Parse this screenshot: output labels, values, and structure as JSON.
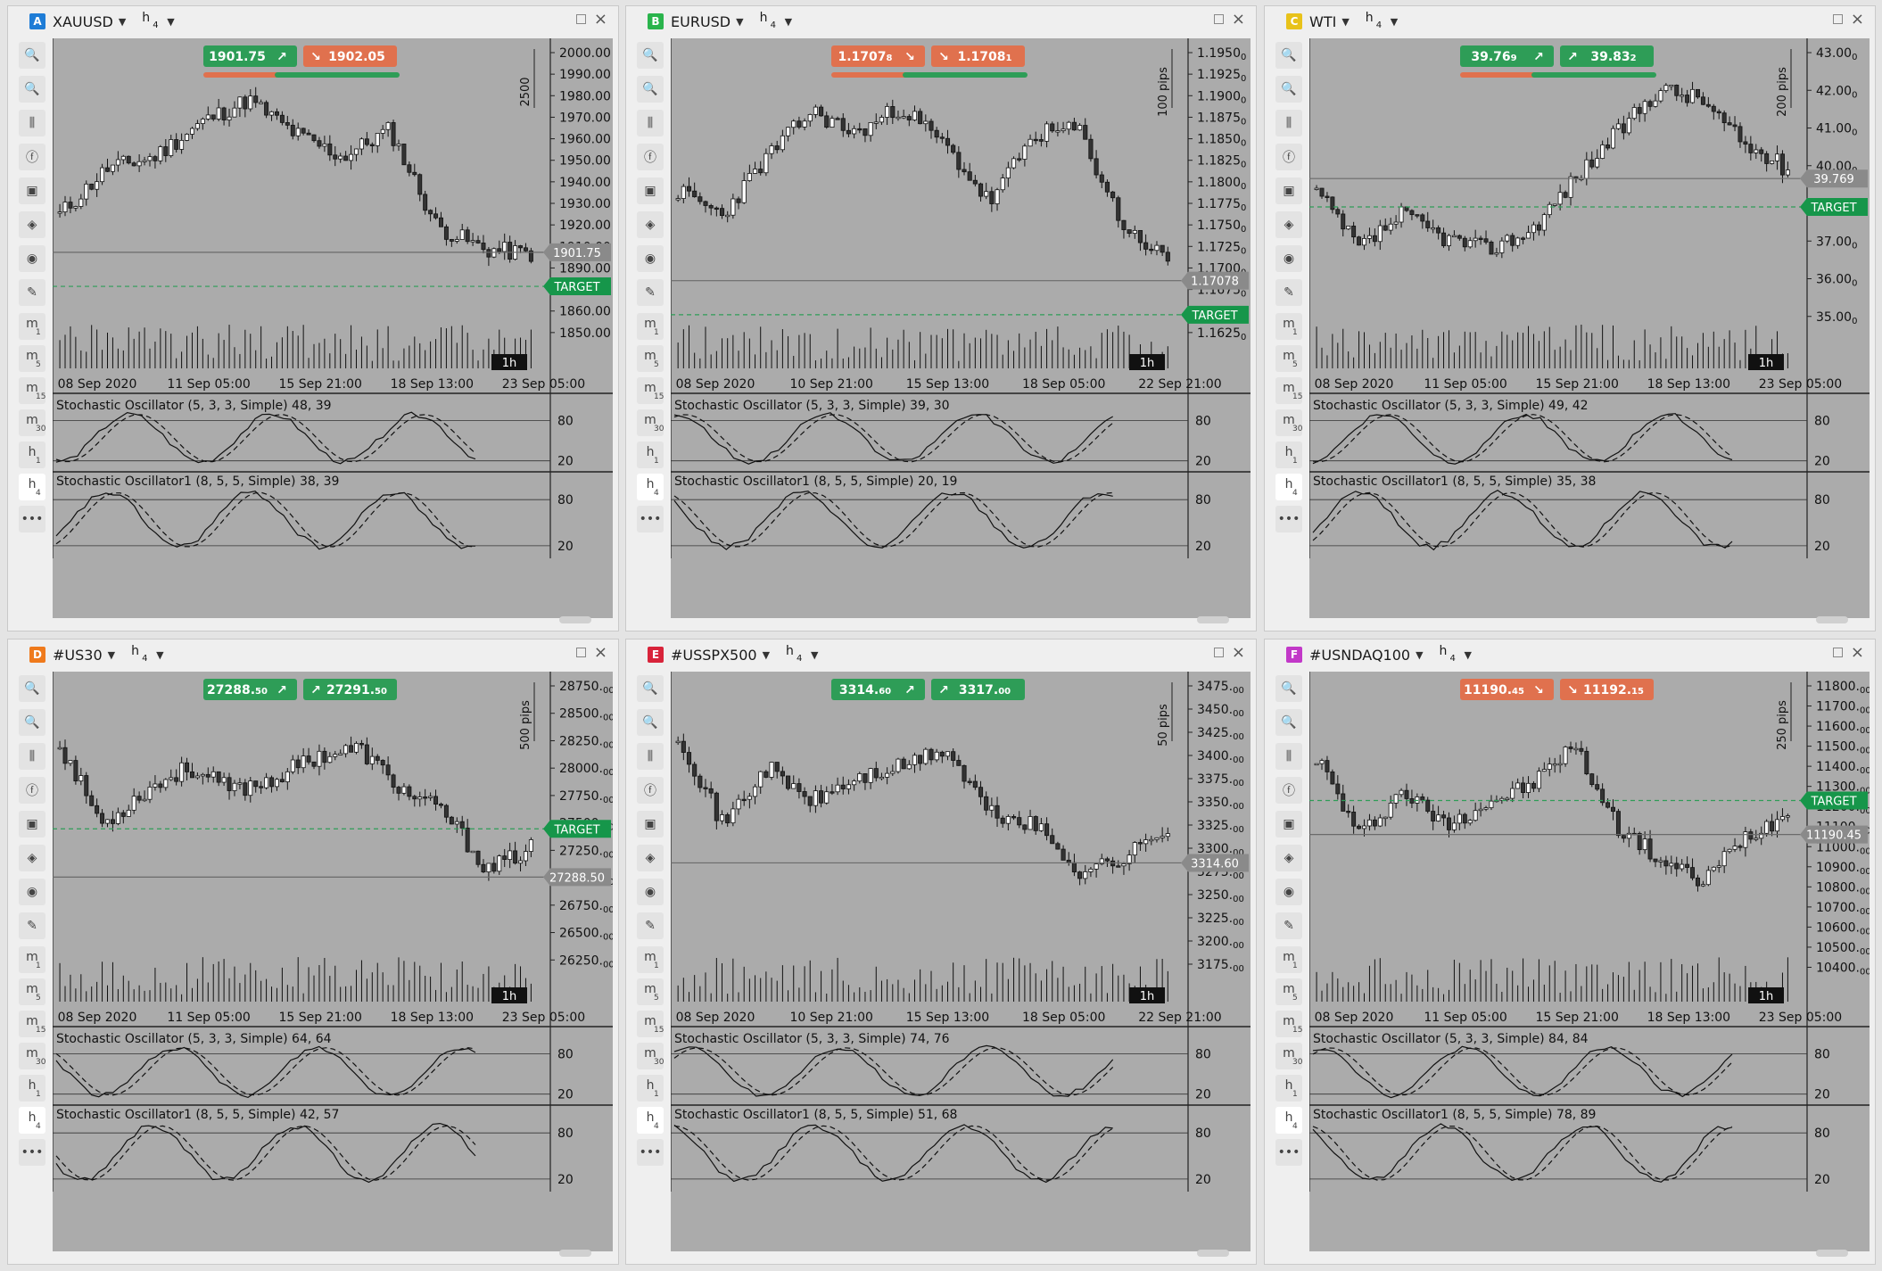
{
  "toolbar_icons": [
    "zoom-in-icon",
    "zoom-out-icon",
    "candlestick-icon",
    "facebook-icon",
    "bot-icon",
    "layers-icon",
    "eye-icon",
    "edit-chart-icon"
  ],
  "timeframes": [
    {
      "t": "m",
      "n": "1"
    },
    {
      "t": "m",
      "n": "5"
    },
    {
      "t": "m",
      "n": "15"
    },
    {
      "t": "m",
      "n": "30"
    },
    {
      "t": "h",
      "n": "1"
    },
    {
      "t": "h",
      "n": "4"
    }
  ],
  "more_label": "•••",
  "target_label": "TARGET",
  "candle_tf_badge": "1h",
  "colors": {
    "sell": "#e0714e",
    "buy": "#2e9d57",
    "chart_bg": "#ababab",
    "gray_label": "#8a8a8a"
  },
  "panels": [
    {
      "letter": "A",
      "letter_color": "#1e7cd6",
      "symbol": "XAUUSD",
      "tf": "h",
      "tf_sub": "4",
      "bid": {
        "main": "1901.75",
        "sub": "",
        "dir": "↗",
        "color": "#2e9d57"
      },
      "ask": {
        "main": "1902.05",
        "sub": "",
        "dir": "↘",
        "color": "#e0714e"
      },
      "spread_bars": [
        "#e0714e",
        "#2e9d57"
      ],
      "pips_label": "2500",
      "price_ticks": [
        "2000.00",
        "1990.00",
        "1980.00",
        "1970.00",
        "1960.00",
        "1950.00",
        "1940.00",
        "1930.00",
        "1920.00",
        "1910.00",
        "1890.00",
        "1870.00",
        "1860.00",
        "1850.00"
      ],
      "current_price": "1901.75",
      "target_y": 0.78,
      "current_y": 0.66,
      "target_color": "#16964a",
      "dates": [
        "08 Sep 2020",
        "11 Sep 05:00",
        "15 Sep 21:00",
        "18 Sep 13:00",
        "23 Sep 05:00"
      ],
      "osc1": "Stochastic Oscillator (5, 3, 3, Simple) 48, 39",
      "osc2": "Stochastic Oscillator1 (8, 5, 5, Simple) 38, 39",
      "seed": 11,
      "shape": [
        0.35,
        0.55,
        0.6,
        0.75,
        0.85,
        0.7,
        0.6,
        0.72,
        0.3,
        0.2,
        0.18
      ]
    },
    {
      "letter": "B",
      "letter_color": "#2ab44c",
      "symbol": "EURUSD",
      "tf": "h",
      "tf_sub": "4",
      "bid": {
        "main": "1.1707",
        "sub": "8",
        "dir": "↘",
        "color": "#e0714e"
      },
      "ask": {
        "main": "1.1708",
        "sub": "1",
        "dir": "↘",
        "color": "#e0714e"
      },
      "spread_bars": [
        "#e0714e",
        "#2e9d57"
      ],
      "pips_label": "100 pips",
      "price_ticks": [
        "1.1950",
        "1.1925",
        "1.1900",
        "1.1875",
        "1.1850",
        "1.1825",
        "1.1800",
        "1.1775",
        "1.1750",
        "1.1725",
        "1.1700",
        "1.1675",
        "1.1650",
        "1.1625"
      ],
      "tick_sub": "0",
      "current_price": "1.17078",
      "target_y": 0.88,
      "current_y": 0.76,
      "target_color": "#16964a",
      "dates": [
        "08 Sep 2020",
        "10 Sep 21:00",
        "15 Sep 13:00",
        "18 Sep 05:00",
        "22 Sep 21:00"
      ],
      "osc1": "Stochastic Oscillator (5, 3, 3, Simple) 39, 30",
      "osc2": "Stochastic Oscillator1 (8, 5, 5, Simple) 20, 19",
      "seed": 23,
      "shape": [
        0.45,
        0.35,
        0.6,
        0.8,
        0.7,
        0.82,
        0.65,
        0.4,
        0.7,
        0.72,
        0.3,
        0.15
      ]
    },
    {
      "letter": "C",
      "letter_color": "#e8c21a",
      "symbol": "WTI",
      "tf": "h",
      "tf_sub": "4",
      "bid": {
        "main": "39.76",
        "sub": "9",
        "dir": "↗",
        "color": "#2e9d57"
      },
      "ask": {
        "main": "39.83",
        "sub": "2",
        "dir": "↗",
        "color": "#2e9d57"
      },
      "spread_bars": [
        "#e0714e",
        "#2e9d57"
      ],
      "pips_label": "200 pips",
      "price_ticks": [
        "43.00",
        "42.00",
        "41.00",
        "40.00",
        "38.00",
        "37.00",
        "36.00",
        "35.00"
      ],
      "tick_sub": "0",
      "current_price": "39.769",
      "target_y": 0.5,
      "current_y": 0.4,
      "target_color": "#16964a",
      "dates": [
        "08 Sep 2020",
        "11 Sep 05:00",
        "15 Sep 21:00",
        "18 Sep 13:00",
        "23 Sep 05:00"
      ],
      "osc1": "Stochastic Oscillator (5, 3, 3, Simple) 49, 42",
      "osc2": "Stochastic Oscillator1 (8, 5, 5, Simple) 35, 38",
      "seed": 37,
      "shape": [
        0.45,
        0.2,
        0.35,
        0.25,
        0.2,
        0.28,
        0.5,
        0.7,
        0.9,
        0.85,
        0.65,
        0.55
      ]
    },
    {
      "letter": "D",
      "letter_color": "#ef7a1c",
      "symbol": "#US30",
      "tf": "h",
      "tf_sub": "4",
      "bid": {
        "main": "27288.",
        "sub": "50",
        "dir": "↗",
        "color": "#2e9d57"
      },
      "ask": {
        "main": "27291.",
        "sub": "50",
        "dir": "↗",
        "color": "#2e9d57"
      },
      "spread_bars": [],
      "pips_label": "500 pips",
      "price_ticks": [
        "28750.",
        "28500.",
        "28250.",
        "28000.",
        "27750.",
        "27500.",
        "27250.",
        "27000.",
        "26750.",
        "26500.",
        "26250."
      ],
      "tick_sub": "00",
      "current_price": "27288.50",
      "target_y": 0.46,
      "current_y": 0.63,
      "target_color": "#16964a",
      "dates": [
        "08 Sep 2020",
        "11 Sep 05:00",
        "15 Sep 21:00",
        "18 Sep 13:00",
        "23 Sep 05:00"
      ],
      "osc1": "Stochastic Oscillator (5, 3, 3, Simple) 64, 64",
      "osc2": "Stochastic Oscillator1 (8, 5, 5, Simple) 42, 57",
      "seed": 53,
      "shape": [
        0.8,
        0.45,
        0.6,
        0.7,
        0.6,
        0.65,
        0.75,
        0.78,
        0.6,
        0.5,
        0.25,
        0.35
      ]
    },
    {
      "letter": "E",
      "letter_color": "#d8233a",
      "symbol": "#USSPX500",
      "tf": "h",
      "tf_sub": "4",
      "bid": {
        "main": "3314.",
        "sub": "60",
        "dir": "↗",
        "color": "#2e9d57"
      },
      "ask": {
        "main": "3317.",
        "sub": "00",
        "dir": "↗",
        "color": "#2e9d57"
      },
      "spread_bars": [],
      "pips_label": "50 pips",
      "price_ticks": [
        "3475.",
        "3450.",
        "3425.",
        "3400.",
        "3375.",
        "3350.",
        "3325.",
        "3300.",
        "3275.",
        "3250.",
        "3225.",
        "3200.",
        "3175."
      ],
      "tick_sub": "00",
      "current_price": "3314.60",
      "target_y": -1,
      "current_y": 0.58,
      "target_color": "#16964a",
      "dates": [
        "08 Sep 2020",
        "10 Sep 21:00",
        "15 Sep 13:00",
        "18 Sep 05:00",
        "22 Sep 21:00"
      ],
      "osc1": "Stochastic Oscillator (5, 3, 3, Simple) 74, 76",
      "osc2": "Stochastic Oscillator1 (8, 5, 5, Simple) 51, 68",
      "seed": 71,
      "shape": [
        0.85,
        0.45,
        0.7,
        0.55,
        0.65,
        0.7,
        0.78,
        0.5,
        0.45,
        0.25,
        0.3,
        0.45
      ]
    },
    {
      "letter": "F",
      "letter_color": "#c238c8",
      "symbol": "#USNDAQ100",
      "tf": "h",
      "tf_sub": "4",
      "bid": {
        "main": "11190.",
        "sub": "45",
        "dir": "↘",
        "color": "#e0714e"
      },
      "ask": {
        "main": "11192.",
        "sub": "15",
        "dir": "↘",
        "color": "#e0714e"
      },
      "spread_bars": [],
      "pips_label": "250 pips",
      "price_ticks": [
        "11800.",
        "11700.",
        "11600.",
        "11500.",
        "11400.",
        "11300.",
        "11200.",
        "11100.",
        "11000.",
        "10900.",
        "10800.",
        "10700.",
        "10600.",
        "10500.",
        "10400."
      ],
      "tick_sub": "00",
      "current_price": "11190.45",
      "target_y": 0.36,
      "current_y": 0.48,
      "target_color": "#16964a",
      "dates": [
        "08 Sep 2020",
        "11 Sep 05:00",
        "15 Sep 21:00",
        "18 Sep 13:00",
        "23 Sep 05:00"
      ],
      "osc1": "Stochastic Oscillator (5, 3, 3, Simple) 84, 84",
      "osc2": "Stochastic Oscillator1 (8, 5, 5, Simple) 78, 89",
      "seed": 97,
      "shape": [
        0.75,
        0.4,
        0.6,
        0.45,
        0.55,
        0.62,
        0.8,
        0.45,
        0.3,
        0.2,
        0.4,
        0.5
      ]
    }
  ]
}
